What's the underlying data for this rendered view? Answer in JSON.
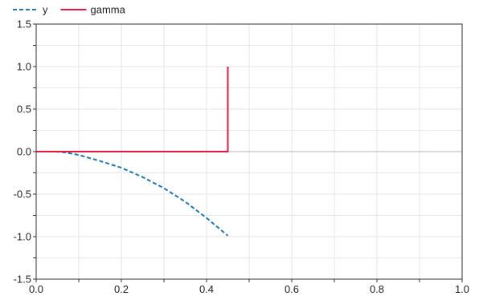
{
  "chart_data": {
    "type": "line",
    "title": "",
    "xlabel": "",
    "ylabel": "",
    "xlim": [
      0,
      1
    ],
    "ylim": [
      -1.5,
      1.5
    ],
    "x_ticks": [
      0.0,
      0.2,
      0.4,
      0.6,
      0.8,
      1.0
    ],
    "x_tick_labels": [
      "0.0",
      "0.2",
      "0.4",
      "0.6",
      "0.8",
      "1.0"
    ],
    "y_ticks": [
      1.5,
      1.0,
      0.5,
      0.0,
      -0.5,
      -1.0,
      -1.5
    ],
    "y_tick_labels": [
      "1.5",
      "1.0",
      "0.5",
      "0.0",
      "-0.5",
      "-1.0",
      "-1.5"
    ],
    "grid": true,
    "legend_position": "top-left",
    "series": [
      {
        "name": "y",
        "color": "#1f77b4",
        "style": "dashed",
        "x": [
          0.03,
          0.05,
          0.07,
          0.1,
          0.15,
          0.2,
          0.25,
          0.3,
          0.35,
          0.4,
          0.45
        ],
        "y": [
          0.0,
          -0.002,
          -0.01,
          -0.04,
          -0.11,
          -0.19,
          -0.3,
          -0.43,
          -0.59,
          -0.78,
          -0.99
        ]
      },
      {
        "name": "gamma",
        "color": "#e8173f",
        "style": "solid",
        "x": [
          0.0,
          0.45,
          0.45
        ],
        "y": [
          0.0,
          0.0,
          1.0
        ]
      }
    ]
  }
}
